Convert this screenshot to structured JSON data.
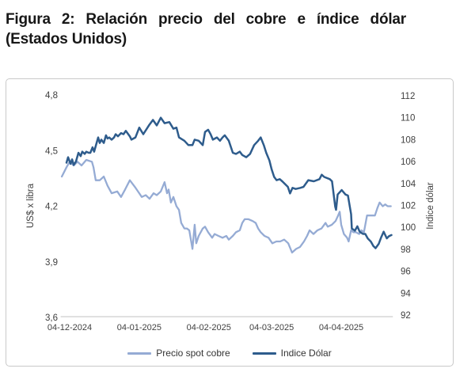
{
  "figure": {
    "title_line1": "Figura 2: Relación precio del cobre e índice dólar",
    "title_line2": "(Estados Unidos)"
  },
  "chart_data": {
    "type": "line",
    "grid": "none",
    "legend_position": "bottom",
    "x_axis": {
      "unit": "days since 04-12-2024",
      "domain": [
        -4,
        144
      ],
      "tick_days": [
        0,
        31,
        62,
        90,
        121
      ],
      "tick_labels": [
        "04-12-2024",
        "04-01-2025",
        "04-02-2025",
        "04-03-2025",
        "04-04-2025"
      ]
    },
    "y_left": {
      "title": "US$ x libra",
      "range": [
        3.6,
        4.8
      ],
      "tick_values": [
        4.8,
        4.5,
        4.2,
        3.9,
        3.6
      ],
      "tick_labels": [
        "4,8",
        "4,5",
        "4,2",
        "3,9",
        "3,6"
      ]
    },
    "y_right": {
      "title": "Indice dólar",
      "range": [
        92,
        112
      ],
      "tick_values": [
        112,
        110,
        108,
        106,
        104,
        102,
        100,
        98,
        96,
        94,
        92
      ],
      "tick_labels": [
        "112",
        "110",
        "108",
        "106",
        "104",
        "102",
        "100",
        "98",
        "96",
        "94",
        "92"
      ]
    },
    "series": [
      {
        "name": "Precio spot cobre",
        "axis": "left",
        "color": "#95abd4",
        "stroke_width": 2.3,
        "points": [
          [
            -3.5,
            4.36
          ],
          [
            -1.4,
            4.41
          ],
          [
            0,
            4.44
          ],
          [
            1.8,
            4.42
          ],
          [
            3.5,
            4.44
          ],
          [
            5.3,
            4.42
          ],
          [
            7.4,
            4.45
          ],
          [
            9.9,
            4.44
          ],
          [
            10.6,
            4.41
          ],
          [
            11.6,
            4.34
          ],
          [
            13.4,
            4.34
          ],
          [
            15.2,
            4.36
          ],
          [
            16.9,
            4.31
          ],
          [
            18.7,
            4.27
          ],
          [
            21.2,
            4.28
          ],
          [
            22.9,
            4.25
          ],
          [
            24.7,
            4.29
          ],
          [
            26.8,
            4.34
          ],
          [
            29.3,
            4.3
          ],
          [
            31,
            4.27
          ],
          [
            32.1,
            4.25
          ],
          [
            33.9,
            4.26
          ],
          [
            35.6,
            4.24
          ],
          [
            37.4,
            4.27
          ],
          [
            38.8,
            4.26
          ],
          [
            40.6,
            4.28
          ],
          [
            42.3,
            4.33
          ],
          [
            43.4,
            4.27
          ],
          [
            44.1,
            4.29
          ],
          [
            45.1,
            4.22
          ],
          [
            46.2,
            4.25
          ],
          [
            47.6,
            4.2
          ],
          [
            48.7,
            4.18
          ],
          [
            49.7,
            4.11
          ],
          [
            51.1,
            4.08
          ],
          [
            52.2,
            4.08
          ],
          [
            53.3,
            4.07
          ],
          [
            54.7,
            3.97
          ],
          [
            55.7,
            4.1
          ],
          [
            56.4,
            4.0
          ],
          [
            57.5,
            4.04
          ],
          [
            59.3,
            4.08
          ],
          [
            60.3,
            4.09
          ],
          [
            61.7,
            4.06
          ],
          [
            63.5,
            4.03
          ],
          [
            64.6,
            4.05
          ],
          [
            66.3,
            4.04
          ],
          [
            68.1,
            4.03
          ],
          [
            69.8,
            4.04
          ],
          [
            70.9,
            4.02
          ],
          [
            72.7,
            4.04
          ],
          [
            74.1,
            4.06
          ],
          [
            75.8,
            4.07
          ],
          [
            76.9,
            4.11
          ],
          [
            78,
            4.13
          ],
          [
            79.7,
            4.13
          ],
          [
            81.5,
            4.12
          ],
          [
            82.9,
            4.11
          ],
          [
            84,
            4.08
          ],
          [
            85.1,
            4.06
          ],
          [
            86.8,
            4.04
          ],
          [
            88.6,
            4.03
          ],
          [
            90.3,
            4.0
          ],
          [
            92.1,
            4.01
          ],
          [
            93.8,
            4.01
          ],
          [
            95.6,
            4.02
          ],
          [
            97.4,
            4.0
          ],
          [
            99.1,
            3.95
          ],
          [
            100.9,
            3.97
          ],
          [
            102.6,
            3.98
          ],
          [
            104.4,
            4.01
          ],
          [
            105.8,
            4.04
          ],
          [
            106.9,
            4.07
          ],
          [
            108.6,
            4.05
          ],
          [
            110.4,
            4.07
          ],
          [
            112.2,
            4.08
          ],
          [
            114,
            4.11
          ],
          [
            115,
            4.09
          ],
          [
            116.8,
            4.1
          ],
          [
            118.5,
            4.12
          ],
          [
            119.6,
            4.15
          ],
          [
            120.3,
            4.17
          ],
          [
            121,
            4.1
          ],
          [
            122.2,
            4.05
          ],
          [
            123.6,
            4.03
          ],
          [
            124.3,
            4.01
          ],
          [
            125.4,
            4.07
          ],
          [
            126.4,
            4.06
          ],
          [
            127.5,
            4.06
          ],
          [
            129,
            4.05
          ],
          [
            130,
            4.07
          ],
          [
            131.1,
            4.06
          ],
          [
            132.5,
            4.15
          ],
          [
            133.5,
            4.15
          ],
          [
            134.6,
            4.15
          ],
          [
            136,
            4.15
          ],
          [
            137.1,
            4.19
          ],
          [
            138.1,
            4.22
          ],
          [
            139.5,
            4.2
          ],
          [
            140.6,
            4.21
          ],
          [
            141.7,
            4.2
          ],
          [
            143.1,
            4.2
          ]
        ]
      },
      {
        "name": "Indice Dólar",
        "axis": "right",
        "color": "#2e5c8c",
        "stroke_width": 2.5,
        "points": [
          [
            -1.4,
            105.9
          ],
          [
            -0.7,
            106.4
          ],
          [
            0.4,
            105.8
          ],
          [
            1.1,
            106.2
          ],
          [
            1.8,
            105.7
          ],
          [
            2.8,
            106.0
          ],
          [
            3.9,
            106.8
          ],
          [
            4.9,
            106.5
          ],
          [
            5.6,
            106.9
          ],
          [
            6.7,
            106.7
          ],
          [
            7.4,
            106.9
          ],
          [
            8.5,
            106.8
          ],
          [
            9.2,
            106.8
          ],
          [
            10.2,
            107.3
          ],
          [
            10.9,
            106.9
          ],
          [
            12,
            107.7
          ],
          [
            12.7,
            108.2
          ],
          [
            13.4,
            107.7
          ],
          [
            14.1,
            108.0
          ],
          [
            15.2,
            107.7
          ],
          [
            16.2,
            108.4
          ],
          [
            16.9,
            108.1
          ],
          [
            17.6,
            108.2
          ],
          [
            18.7,
            108.0
          ],
          [
            19.8,
            108.2
          ],
          [
            20.5,
            108.5
          ],
          [
            21.5,
            108.3
          ],
          [
            22.9,
            108.6
          ],
          [
            24,
            108.5
          ],
          [
            25,
            108.8
          ],
          [
            26.8,
            108.3
          ],
          [
            27.5,
            108.0
          ],
          [
            29.3,
            108.2
          ],
          [
            31,
            109.1
          ],
          [
            32.8,
            108.5
          ],
          [
            35.3,
            109.3
          ],
          [
            37.1,
            109.8
          ],
          [
            38.8,
            109.3
          ],
          [
            40.6,
            110.0
          ],
          [
            42.3,
            109.5
          ],
          [
            44.4,
            109.6
          ],
          [
            46.2,
            109.0
          ],
          [
            47.6,
            109.1
          ],
          [
            48.7,
            108.2
          ],
          [
            51.1,
            107.9
          ],
          [
            52.9,
            107.5
          ],
          [
            54.7,
            107.5
          ],
          [
            55.7,
            108.0
          ],
          [
            57.5,
            107.9
          ],
          [
            59.3,
            107.5
          ],
          [
            60.3,
            108.7
          ],
          [
            61.7,
            108.9
          ],
          [
            62.8,
            108.5
          ],
          [
            63.8,
            108.0
          ],
          [
            65.6,
            108.2
          ],
          [
            67,
            107.9
          ],
          [
            68.1,
            108.2
          ],
          [
            69.1,
            108.4
          ],
          [
            70.9,
            107.9
          ],
          [
            72.7,
            106.8
          ],
          [
            74.1,
            106.7
          ],
          [
            75.8,
            106.9
          ],
          [
            76.9,
            106.6
          ],
          [
            78.7,
            106.4
          ],
          [
            80.4,
            106.7
          ],
          [
            82.2,
            107.5
          ],
          [
            84,
            107.9
          ],
          [
            85.1,
            108.2
          ],
          [
            86.5,
            107.5
          ],
          [
            87.6,
            106.8
          ],
          [
            89,
            106.1
          ],
          [
            90,
            105.3
          ],
          [
            91.1,
            104.6
          ],
          [
            92.2,
            104.3
          ],
          [
            93.6,
            104.4
          ],
          [
            94.7,
            104.2
          ],
          [
            97.2,
            103.7
          ],
          [
            98.2,
            103.1
          ],
          [
            99.3,
            103.6
          ],
          [
            100.7,
            103.5
          ],
          [
            102.8,
            103.6
          ],
          [
            104.2,
            103.7
          ],
          [
            106.3,
            104.3
          ],
          [
            108.8,
            104.2
          ],
          [
            111.3,
            104.4
          ],
          [
            112.3,
            104.8
          ],
          [
            113.4,
            104.6
          ],
          [
            115.9,
            104.4
          ],
          [
            116.9,
            104.2
          ],
          [
            118.3,
            101.9
          ],
          [
            118.7,
            101.6
          ],
          [
            119.4,
            103.0
          ],
          [
            121.2,
            103.4
          ],
          [
            122.9,
            103.0
          ],
          [
            124,
            102.9
          ],
          [
            125.4,
            101.2
          ],
          [
            125.7,
            99.9
          ],
          [
            127.1,
            99.7
          ],
          [
            128.2,
            100.1
          ],
          [
            129.2,
            99.6
          ],
          [
            130.7,
            99.4
          ],
          [
            131.7,
            99.4
          ],
          [
            132.8,
            99.0
          ],
          [
            134.2,
            98.7
          ],
          [
            135.3,
            98.3
          ],
          [
            136.3,
            98.1
          ],
          [
            137.7,
            98.5
          ],
          [
            138.8,
            99.1
          ],
          [
            139.9,
            99.6
          ],
          [
            141.3,
            99.0
          ],
          [
            142.3,
            99.2
          ],
          [
            143.4,
            99.3
          ]
        ]
      }
    ],
    "axis_line_color": "#c0c0c0",
    "tick_text_color": "#3f3f3f"
  }
}
